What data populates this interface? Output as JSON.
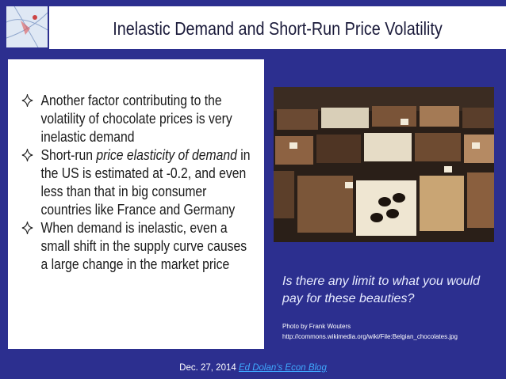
{
  "header": {
    "title": "Inelastic Demand and Short-Run Price Volatility"
  },
  "bullets": [
    {
      "parts": [
        "Another factor contributing to the volatility of chocolate prices is very inelastic demand"
      ]
    },
    {
      "parts": [
        "Short-run ",
        "price elasticity of demand",
        " in the US is estimated at -0.2, and even less than that in big consumer countries like France and Germany"
      ]
    },
    {
      "parts": [
        "When demand is inelastic, even a small shift in the supply curve causes a large change in the market price"
      ]
    }
  ],
  "caption": "Is there any limit to what you would pay for these beauties?",
  "credit": {
    "author": "Photo by Frank Wouters",
    "url": "http://commons.wikimedia.org/wiki/File:Belgian_chocolates.jpg"
  },
  "footer": {
    "date": "Dec. 27, 2014",
    "link": "Ed Dolan's Econ Blog"
  }
}
